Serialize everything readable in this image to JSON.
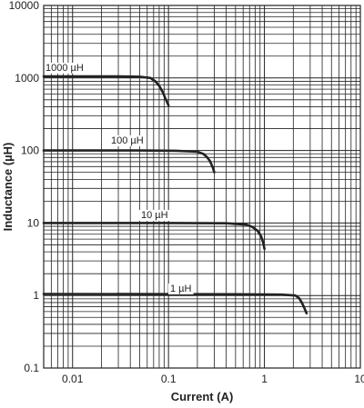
{
  "chart_data": {
    "type": "line",
    "title": "",
    "xlabel": "Current (A)",
    "ylabel": "Inductance (µH)",
    "x_scale": "log",
    "y_scale": "log",
    "xlim": [
      0.005,
      10
    ],
    "ylim": [
      0.1,
      10000
    ],
    "grid": true,
    "x_ticks": [
      {
        "value": 0.01,
        "label": "0.01"
      },
      {
        "value": 0.1,
        "label": "0.1"
      },
      {
        "value": 1,
        "label": "1"
      },
      {
        "value": 10,
        "label": "10"
      }
    ],
    "y_ticks": [
      {
        "value": 0.1,
        "label": "0.1"
      },
      {
        "value": 1,
        "label": "1"
      },
      {
        "value": 10,
        "label": "10"
      },
      {
        "value": 100,
        "label": "100"
      },
      {
        "value": 1000,
        "label": "1000"
      },
      {
        "value": 10000,
        "label": "10000"
      }
    ],
    "series": [
      {
        "name": "1000 µH",
        "x": [
          0.005,
          0.03,
          0.05,
          0.065,
          0.073,
          0.08,
          0.087,
          0.093,
          0.1
        ],
        "y": [
          1050,
          1050,
          1040,
          1000,
          900,
          780,
          640,
          520,
          420
        ]
      },
      {
        "name": "100 µH",
        "x": [
          0.005,
          0.05,
          0.12,
          0.2,
          0.23,
          0.25,
          0.27,
          0.29,
          0.3
        ],
        "y": [
          100,
          100,
          99,
          96,
          90,
          82,
          72,
          58,
          50
        ]
      },
      {
        "name": "10 µH",
        "x": [
          0.005,
          0.1,
          0.4,
          0.65,
          0.75,
          0.85,
          0.92,
          0.97,
          1.0
        ],
        "y": [
          10,
          10,
          9.9,
          9.5,
          8.8,
          7.8,
          6.6,
          5.4,
          4.4
        ]
      },
      {
        "name": "1 µH",
        "x": [
          0.005,
          0.5,
          1.5,
          2.1,
          2.3,
          2.45,
          2.6,
          2.75
        ],
        "y": [
          1.05,
          1.04,
          1.03,
          1.0,
          0.92,
          0.8,
          0.68,
          0.57
        ]
      }
    ]
  }
}
